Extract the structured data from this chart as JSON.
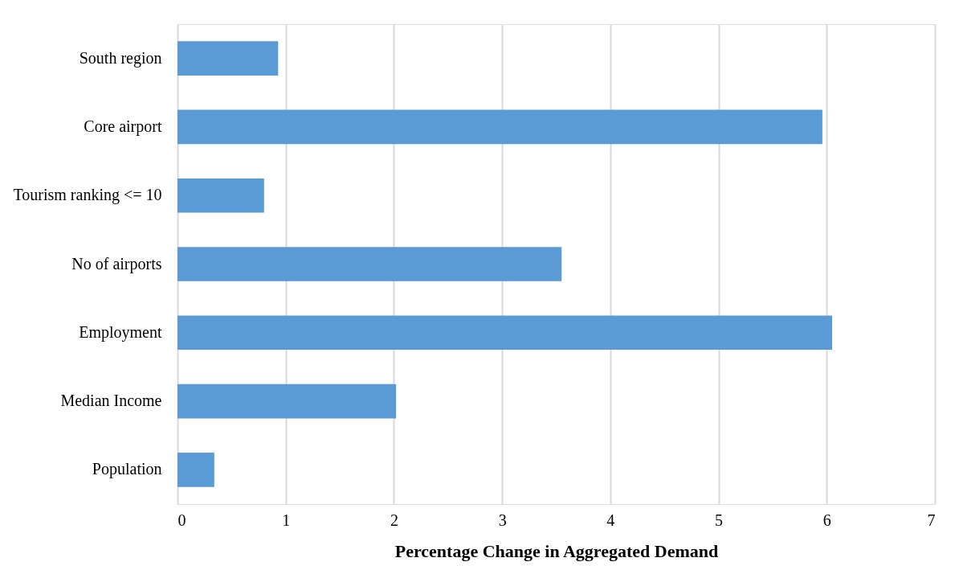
{
  "chart_data": {
    "type": "bar",
    "orientation": "horizontal",
    "xlabel": "Percentage Change in Aggregated Demand",
    "categories": [
      "South region",
      "Core airport",
      "Tourism ranking <= 10",
      "No of airports",
      "Employment",
      "Median Income",
      "Population"
    ],
    "values": [
      0.93,
      5.96,
      0.8,
      3.55,
      6.05,
      2.02,
      0.34
    ],
    "color": "#5b9bd5",
    "xlim": [
      0,
      7
    ],
    "xticks": [
      0,
      1,
      2,
      3,
      4,
      5,
      6,
      7
    ],
    "grid": "x"
  }
}
